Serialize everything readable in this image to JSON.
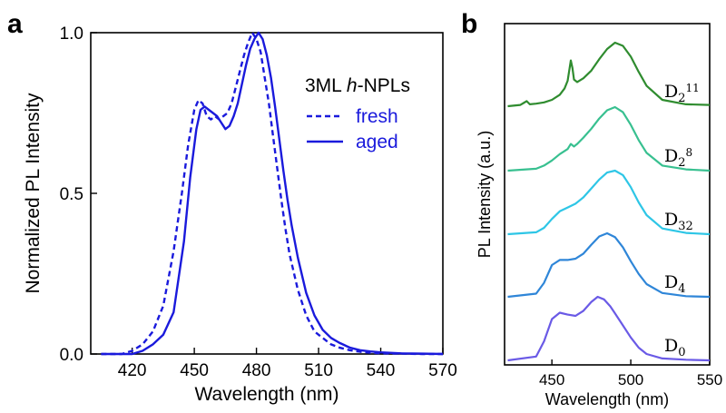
{
  "chart_data": [
    {
      "panel_label": "a",
      "type": "line",
      "xlabel": "Wavelength (nm)",
      "ylabel": "Normalized PL Intensity",
      "xlim": [
        400,
        570
      ],
      "ylim": [
        0,
        1.0
      ],
      "xticks": [
        420,
        450,
        480,
        510,
        540,
        570
      ],
      "yticks": [
        0.0,
        0.5,
        1.0
      ],
      "ytick_labels": [
        "0.0",
        "0.5",
        "1.0"
      ],
      "legend_title_prefix": "3ML ",
      "legend_title_italic": "h",
      "legend_title_suffix": "-NPLs",
      "legend_position": "top-right",
      "color": "#1a1adc",
      "grid": false,
      "series": [
        {
          "name": "fresh",
          "style": "dashed",
          "x": [
            405,
            415,
            420,
            425,
            430,
            435,
            440,
            444,
            447,
            450,
            452,
            454,
            456,
            458,
            460,
            462,
            464,
            466,
            468,
            470,
            472,
            474,
            476,
            478,
            480,
            482,
            484,
            486,
            488,
            490,
            492,
            494,
            496,
            500,
            504,
            508,
            512,
            516,
            520,
            525,
            530,
            535,
            540,
            550,
            560,
            570
          ],
          "y": [
            0.0,
            0.0,
            0.01,
            0.03,
            0.07,
            0.15,
            0.32,
            0.5,
            0.65,
            0.76,
            0.79,
            0.78,
            0.74,
            0.73,
            0.74,
            0.73,
            0.74,
            0.75,
            0.78,
            0.83,
            0.88,
            0.93,
            0.97,
            1.0,
            0.98,
            0.94,
            0.86,
            0.78,
            0.68,
            0.58,
            0.48,
            0.39,
            0.31,
            0.2,
            0.12,
            0.07,
            0.05,
            0.03,
            0.02,
            0.012,
            0.007,
            0.004,
            0.002,
            0.001,
            0.0,
            0.0
          ]
        },
        {
          "name": "aged",
          "style": "solid",
          "x": [
            405,
            420,
            425,
            430,
            435,
            440,
            445,
            448,
            451,
            453,
            455,
            457,
            459,
            461,
            463,
            465,
            467,
            469,
            471,
            473,
            475,
            477,
            479,
            481,
            483,
            485,
            487,
            489,
            491,
            493,
            495,
            497,
            500,
            504,
            508,
            512,
            516,
            520,
            525,
            530,
            535,
            540,
            550,
            560,
            570
          ],
          "y": [
            0.0,
            0.0,
            0.01,
            0.03,
            0.06,
            0.13,
            0.35,
            0.55,
            0.7,
            0.76,
            0.77,
            0.76,
            0.75,
            0.74,
            0.72,
            0.7,
            0.71,
            0.74,
            0.78,
            0.84,
            0.9,
            0.95,
            0.98,
            1.0,
            0.98,
            0.93,
            0.86,
            0.77,
            0.67,
            0.57,
            0.48,
            0.4,
            0.3,
            0.19,
            0.12,
            0.075,
            0.05,
            0.035,
            0.02,
            0.012,
            0.008,
            0.005,
            0.002,
            0.001,
            0.0
          ]
        }
      ]
    },
    {
      "panel_label": "b",
      "type": "line",
      "xlabel": "Wavelength (nm)",
      "ylabel": "PL Intensity (a.u.)",
      "xlim": [
        420,
        550
      ],
      "xticks": [
        450,
        500,
        550
      ],
      "grid": false,
      "series": [
        {
          "name_base": "D",
          "name_sub": "0",
          "name_sup": "",
          "color": "#6a5ae6",
          "peak": 479,
          "shoulder": 455,
          "shoulder_amp": 0.78,
          "sharp": 0,
          "x": [
            422,
            440,
            445,
            450,
            455,
            460,
            465,
            470,
            475,
            479,
            483,
            487,
            490,
            495,
            500,
            505,
            510,
            520,
            535,
            550
          ],
          "y": [
            0.0,
            0.06,
            0.3,
            0.65,
            0.75,
            0.72,
            0.7,
            0.78,
            0.92,
            1.0,
            0.96,
            0.85,
            0.74,
            0.55,
            0.36,
            0.2,
            0.1,
            0.03,
            0.01,
            0.0
          ]
        },
        {
          "name_base": "D",
          "name_sub": "4",
          "name_sup": "",
          "color": "#2f86d8",
          "x": [
            422,
            440,
            445,
            450,
            455,
            460,
            465,
            470,
            475,
            480,
            485,
            490,
            495,
            500,
            505,
            510,
            520,
            535,
            550
          ],
          "y": [
            0.0,
            0.05,
            0.22,
            0.5,
            0.58,
            0.58,
            0.6,
            0.68,
            0.82,
            0.95,
            1.0,
            0.94,
            0.78,
            0.56,
            0.36,
            0.2,
            0.06,
            0.01,
            0.0
          ]
        },
        {
          "name_base": "D",
          "name_sub": "32",
          "name_sup": "",
          "color": "#2ec6e6",
          "x": [
            422,
            440,
            445,
            450,
            455,
            460,
            465,
            470,
            475,
            480,
            485,
            490,
            495,
            500,
            505,
            510,
            520,
            535,
            550
          ],
          "y": [
            0.0,
            0.03,
            0.1,
            0.24,
            0.36,
            0.42,
            0.48,
            0.58,
            0.72,
            0.86,
            0.97,
            1.0,
            0.93,
            0.74,
            0.5,
            0.3,
            0.09,
            0.02,
            0.0
          ]
        },
        {
          "name_base": "D",
          "name_sup": "8",
          "name_sub": "",
          "name_pre": "2",
          "color": "#38c090",
          "x": [
            422,
            440,
            445,
            450,
            455,
            460,
            462,
            464,
            466,
            470,
            475,
            480,
            485,
            490,
            495,
            500,
            505,
            510,
            520,
            535,
            550
          ],
          "y": [
            0.0,
            0.03,
            0.08,
            0.16,
            0.26,
            0.34,
            0.42,
            0.38,
            0.42,
            0.52,
            0.66,
            0.82,
            0.95,
            1.0,
            0.92,
            0.72,
            0.48,
            0.28,
            0.08,
            0.02,
            0.0
          ]
        },
        {
          "name_base": "D",
          "name_sup": "11",
          "name_sub": "",
          "name_pre": "2",
          "color": "#2f8c2f",
          "x": [
            422,
            430,
            432,
            434,
            436,
            440,
            445,
            450,
            455,
            458,
            460,
            462,
            463,
            464,
            466,
            470,
            475,
            480,
            485,
            490,
            495,
            500,
            505,
            510,
            520,
            535,
            550
          ],
          "y": [
            0.0,
            0.02,
            0.05,
            0.08,
            0.03,
            0.04,
            0.06,
            0.1,
            0.18,
            0.28,
            0.4,
            0.72,
            0.6,
            0.42,
            0.38,
            0.44,
            0.56,
            0.74,
            0.9,
            1.0,
            0.95,
            0.78,
            0.54,
            0.32,
            0.1,
            0.03,
            0.02
          ]
        }
      ]
    }
  ]
}
